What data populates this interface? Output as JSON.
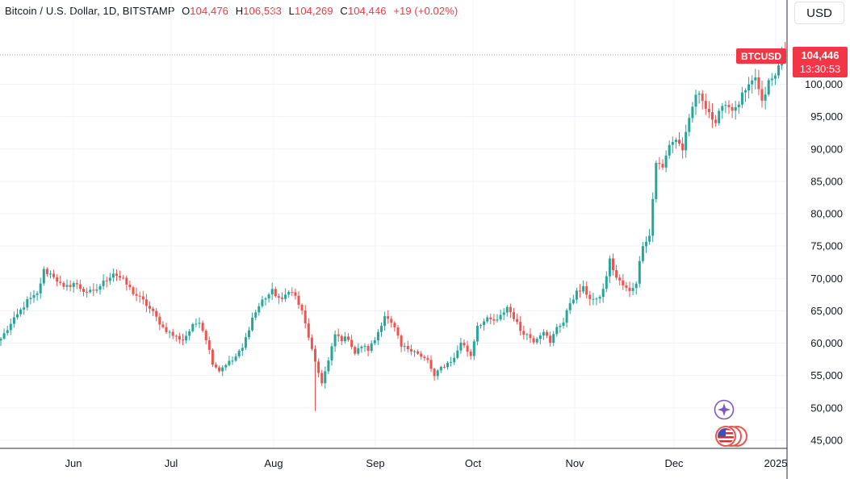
{
  "legend": {
    "symbol": "Bitcoin / U.S. Dollar, 1D, BITSTAMP",
    "open_label": "O",
    "open": "104,476",
    "high_label": "H",
    "high": "106,533",
    "low_label": "L",
    "low": "104,269",
    "close_label": "C",
    "close": "104,446",
    "change": "+19 (+0.02%)"
  },
  "currency_button": "USD",
  "price_tag": {
    "symbol": "BTCUSD",
    "price": "104,446",
    "countdown": "13:30:53"
  },
  "colors": {
    "up": "#26a69a",
    "down": "#ef5350",
    "tag": "#f23645",
    "grid": "#f0f3fa",
    "accent_icon": "#7e57c2"
  },
  "icons": [
    "sparkle-icon",
    "us-flag-events-icon"
  ],
  "chart_data": {
    "type": "candlestick",
    "y_ticks": [
      "100,000",
      "95,000",
      "90,000",
      "85,000",
      "80,000",
      "75,000",
      "70,000",
      "65,000",
      "60,000",
      "55,000",
      "50,000",
      "45,000"
    ],
    "x_ticks": [
      "Jun",
      "Jul",
      "Aug",
      "Sep",
      "Oct",
      "Nov",
      "Dec",
      "2025"
    ],
    "ylim": [
      43800,
      106800
    ],
    "last_price": 104446,
    "anchors": [
      {
        "d": 0,
        "p": 60700
      },
      {
        "d": 4,
        "p": 63600
      },
      {
        "d": 8,
        "p": 66500
      },
      {
        "d": 11,
        "p": 67500
      },
      {
        "d": 13,
        "p": 71200
      },
      {
        "d": 16,
        "p": 70400
      },
      {
        "d": 19,
        "p": 68400
      },
      {
        "d": 22,
        "p": 69300
      },
      {
        "d": 25,
        "p": 68100
      },
      {
        "d": 28,
        "p": 67800
      },
      {
        "d": 31,
        "p": 69400
      },
      {
        "d": 34,
        "p": 70900
      },
      {
        "d": 37,
        "p": 69700
      },
      {
        "d": 40,
        "p": 67800
      },
      {
        "d": 43,
        "p": 66500
      },
      {
        "d": 46,
        "p": 64700
      },
      {
        "d": 49,
        "p": 62400
      },
      {
        "d": 52,
        "p": 61200
      },
      {
        "d": 55,
        "p": 60500
      },
      {
        "d": 58,
        "p": 62600
      },
      {
        "d": 60,
        "p": 63500
      },
      {
        "d": 62,
        "p": 60700
      },
      {
        "d": 64,
        "p": 57000
      },
      {
        "d": 66,
        "p": 55800
      },
      {
        "d": 68,
        "p": 56800
      },
      {
        "d": 70,
        "p": 57300
      },
      {
        "d": 73,
        "p": 59200
      },
      {
        "d": 76,
        "p": 63900
      },
      {
        "d": 79,
        "p": 66600
      },
      {
        "d": 82,
        "p": 68000
      },
      {
        "d": 85,
        "p": 66500
      },
      {
        "d": 87,
        "p": 68300
      },
      {
        "d": 89,
        "p": 67200
      },
      {
        "d": 91,
        "p": 64800
      },
      {
        "d": 93,
        "p": 61000
      },
      {
        "d": 95,
        "p": 56800
      },
      {
        "d": 97,
        "p": 54000
      },
      {
        "d": 99,
        "p": 57200
      },
      {
        "d": 101,
        "p": 61300
      },
      {
        "d": 103,
        "p": 60600
      },
      {
        "d": 105,
        "p": 60800
      },
      {
        "d": 107,
        "p": 58400
      },
      {
        "d": 109,
        "p": 59600
      },
      {
        "d": 111,
        "p": 59000
      },
      {
        "d": 113,
        "p": 60500
      },
      {
        "d": 116,
        "p": 64300
      },
      {
        "d": 119,
        "p": 62200
      },
      {
        "d": 121,
        "p": 59400
      },
      {
        "d": 123,
        "p": 59200
      },
      {
        "d": 125,
        "p": 58900
      },
      {
        "d": 127,
        "p": 57800
      },
      {
        "d": 129,
        "p": 57300
      },
      {
        "d": 131,
        "p": 54800
      },
      {
        "d": 133,
        "p": 56200
      },
      {
        "d": 135,
        "p": 56900
      },
      {
        "d": 137,
        "p": 57600
      },
      {
        "d": 139,
        "p": 60200
      },
      {
        "d": 142,
        "p": 58100
      },
      {
        "d": 144,
        "p": 62800
      },
      {
        "d": 147,
        "p": 63600
      },
      {
        "d": 150,
        "p": 63400
      },
      {
        "d": 153,
        "p": 65600
      },
      {
        "d": 155,
        "p": 64000
      },
      {
        "d": 157,
        "p": 62000
      },
      {
        "d": 159,
        "p": 61300
      },
      {
        "d": 161,
        "p": 60400
      },
      {
        "d": 164,
        "p": 62000
      },
      {
        "d": 166,
        "p": 59900
      },
      {
        "d": 168,
        "p": 62600
      },
      {
        "d": 170,
        "p": 63200
      },
      {
        "d": 172,
        "p": 66300
      },
      {
        "d": 174,
        "p": 67800
      },
      {
        "d": 176,
        "p": 68400
      },
      {
        "d": 178,
        "p": 67000
      },
      {
        "d": 180,
        "p": 66500
      },
      {
        "d": 182,
        "p": 68200
      },
      {
        "d": 184,
        "p": 72800
      },
      {
        "d": 186,
        "p": 70100
      },
      {
        "d": 188,
        "p": 68900
      },
      {
        "d": 190,
        "p": 67900
      },
      {
        "d": 192,
        "p": 69500
      },
      {
        "d": 194,
        "p": 75400
      },
      {
        "d": 196,
        "p": 76600
      },
      {
        "d": 198,
        "p": 88000
      },
      {
        "d": 200,
        "p": 87000
      },
      {
        "d": 202,
        "p": 90800
      },
      {
        "d": 204,
        "p": 91500
      },
      {
        "d": 206,
        "p": 90000
      },
      {
        "d": 208,
        "p": 94300
      },
      {
        "d": 210,
        "p": 98500
      },
      {
        "d": 212,
        "p": 97700
      },
      {
        "d": 214,
        "p": 95800
      },
      {
        "d": 216,
        "p": 93500
      },
      {
        "d": 218,
        "p": 97200
      },
      {
        "d": 220,
        "p": 96600
      },
      {
        "d": 222,
        "p": 96000
      },
      {
        "d": 224,
        "p": 98200
      },
      {
        "d": 226,
        "p": 99400
      },
      {
        "d": 228,
        "p": 101100
      },
      {
        "d": 230,
        "p": 97000
      },
      {
        "d": 232,
        "p": 100300
      },
      {
        "d": 234,
        "p": 101200
      },
      {
        "d": 236,
        "p": 104476
      },
      {
        "d": 237,
        "p": 104446
      }
    ]
  }
}
